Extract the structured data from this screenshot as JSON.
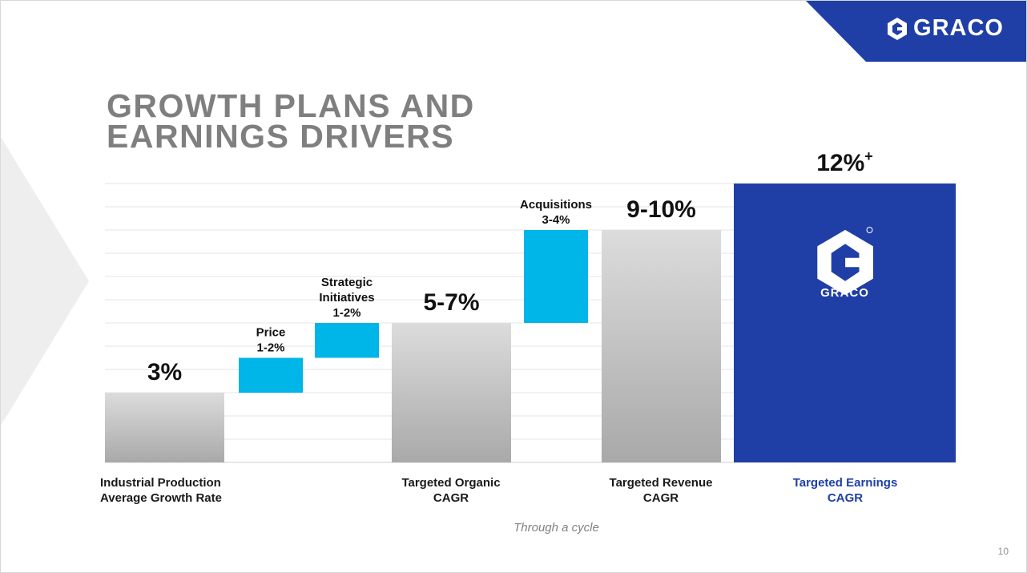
{
  "header": {
    "brand": "GRACO",
    "colors": {
      "brand_blue": "#1f3fa7",
      "accent_cyan": "#00b5e8",
      "title_gray": "#7f7f7f"
    }
  },
  "slide": {
    "title": "GROWTH PLANS AND\nEARNINGS DRIVERS",
    "footnote": "Through a cycle",
    "page_number": "10"
  },
  "chart_data": {
    "type": "bar",
    "subtype": "waterfall",
    "grid": true,
    "bars": [
      {
        "label": "Industrial Production\nAverage Growth Rate",
        "kind": "total",
        "value_label": "3%",
        "start": 0,
        "end": 3
      },
      {
        "label": "",
        "kind": "step",
        "step_label": "Price\n1-2%",
        "start": 3,
        "end": 4.5
      },
      {
        "label": "",
        "kind": "step",
        "step_label": "Strategic\nInitiatives\n1-2%",
        "start": 4.5,
        "end": 6
      },
      {
        "label": "Targeted Organic\nCAGR",
        "kind": "total",
        "value_label": "5-7%",
        "start": 0,
        "end": 6
      },
      {
        "label": "",
        "kind": "step",
        "step_label": "Acquisitions\n3-4%",
        "start": 6,
        "end": 10
      },
      {
        "label": "Targeted Revenue\nCAGR",
        "kind": "total",
        "value_label": "9-10%",
        "start": 0,
        "end": 10
      },
      {
        "label": "Targeted Earnings\nCAGR",
        "kind": "highlight",
        "value_label": "12%",
        "value_suffix": "+",
        "start": 0,
        "end": 12
      }
    ],
    "inner_logo_text": "GRACO"
  }
}
